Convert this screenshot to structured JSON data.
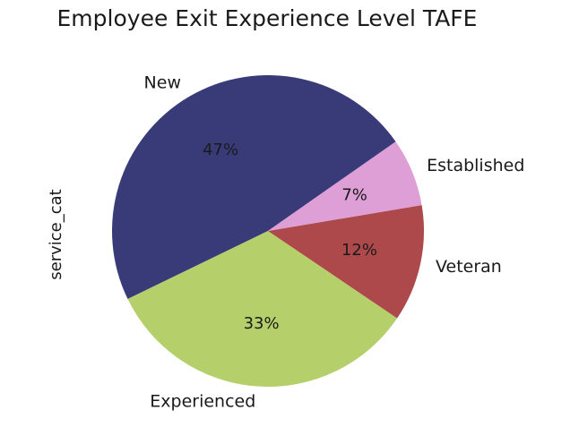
{
  "chart_data": {
    "type": "pie",
    "title": "Employee Exit Experience Level TAFE",
    "ylabel": "service_cat",
    "labels": [
      "New",
      "Experienced",
      "Veteran",
      "Established"
    ],
    "values": [
      47,
      33,
      12,
      7
    ],
    "percent_labels": [
      "47%",
      "33%",
      "12%",
      "7%"
    ],
    "colors": [
      "#393b79",
      "#b5cf6b",
      "#ad494a",
      "#de9ed6"
    ],
    "start_angle_deg": 35,
    "direction": "counterclockwise",
    "legend": "none"
  }
}
